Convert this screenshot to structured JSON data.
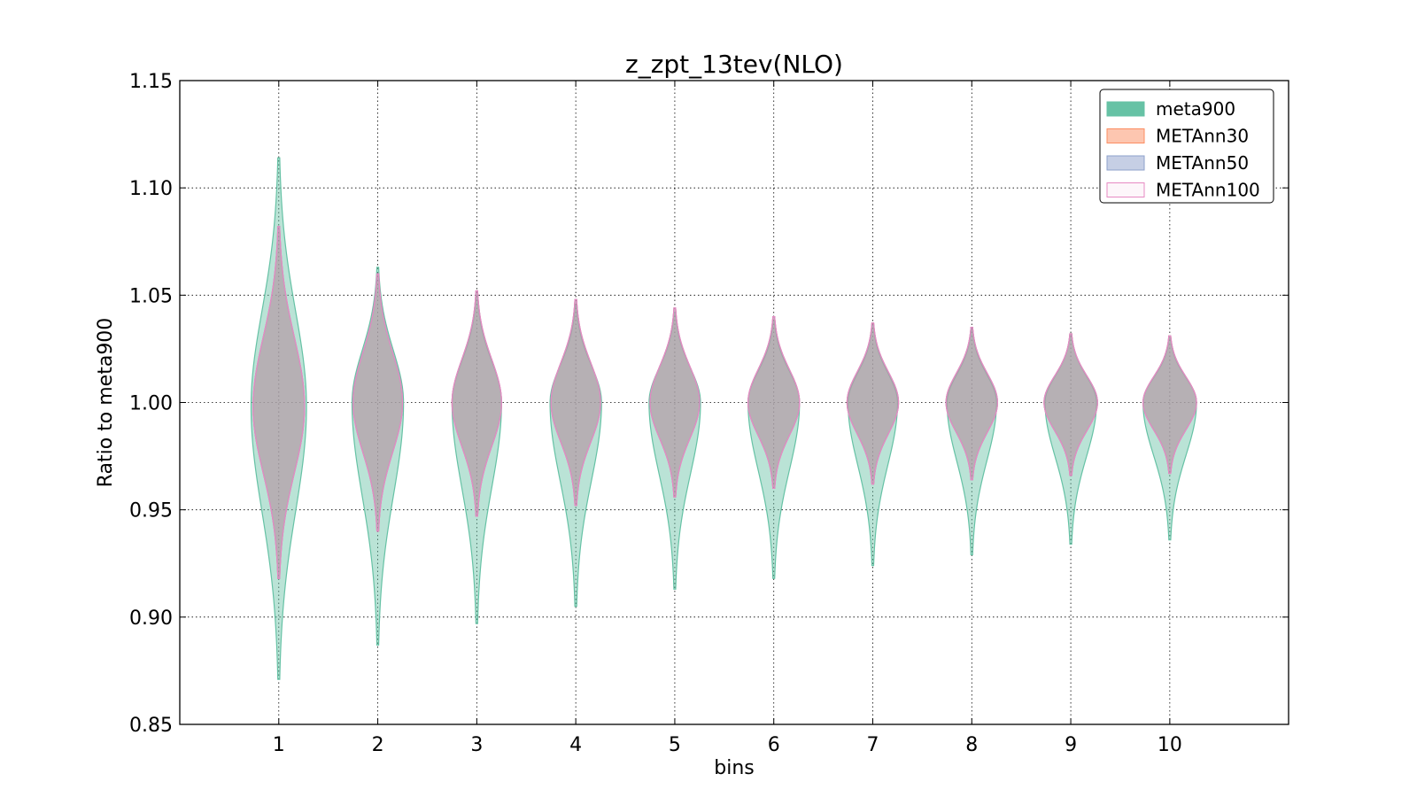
{
  "chart_data": {
    "type": "violin",
    "title": "z_zpt_13tev(NLO)",
    "xlabel": "bins",
    "ylabel": "Ratio to meta900",
    "ylim": [
      0.85,
      1.15
    ],
    "xlim": [
      0,
      11.2
    ],
    "yticks": [
      "0.85",
      "0.90",
      "0.95",
      "1.00",
      "1.05",
      "1.10",
      "1.15"
    ],
    "categories": [
      "1",
      "2",
      "3",
      "4",
      "5",
      "6",
      "7",
      "8",
      "9",
      "10"
    ],
    "grid": true,
    "legend_position": "top-right",
    "series": [
      {
        "name": "meta900",
        "fill": "#66c2a5",
        "edge": "#66c2a5",
        "filled": true,
        "min": [
          0.871,
          0.887,
          0.897,
          0.905,
          0.913,
          0.918,
          0.924,
          0.929,
          0.934,
          0.936
        ],
        "max": [
          1.114,
          1.063,
          1.05,
          1.045,
          1.042,
          1.038,
          1.036,
          1.034,
          1.032,
          1.03
        ],
        "center": [
          0.998,
          1.0,
          1.0,
          1.0,
          1.0,
          1.0,
          1.0,
          1.0,
          1.0,
          1.0
        ],
        "width": [
          0.28,
          0.26,
          0.25,
          0.26,
          0.26,
          0.26,
          0.25,
          0.25,
          0.26,
          0.27
        ]
      },
      {
        "name": "METAnn30",
        "fill": "#fc8d62",
        "edge": "#fc8d62",
        "filled": true,
        "min": [
          0.918,
          0.94,
          0.947,
          0.952,
          0.956,
          0.96,
          0.962,
          0.964,
          0.966,
          0.967
        ],
        "max": [
          1.082,
          1.06,
          1.052,
          1.048,
          1.044,
          1.04,
          1.037,
          1.035,
          1.032,
          1.031
        ],
        "center": [
          0.998,
          1.0,
          1.0,
          1.0,
          1.0,
          1.0,
          1.0,
          1.0,
          1.0,
          1.0
        ],
        "width": [
          0.26,
          0.25,
          0.25,
          0.25,
          0.25,
          0.26,
          0.26,
          0.26,
          0.27,
          0.27
        ]
      },
      {
        "name": "METAnn50",
        "fill": "#8da0cb",
        "edge": "#8da0cb",
        "filled": true,
        "min": [
          0.918,
          0.94,
          0.947,
          0.952,
          0.956,
          0.96,
          0.962,
          0.964,
          0.966,
          0.967
        ],
        "max": [
          1.082,
          1.06,
          1.052,
          1.048,
          1.044,
          1.04,
          1.037,
          1.035,
          1.032,
          1.031
        ],
        "center": [
          0.998,
          1.0,
          1.0,
          1.0,
          1.0,
          1.0,
          1.0,
          1.0,
          1.0,
          1.0
        ],
        "width": [
          0.26,
          0.25,
          0.25,
          0.25,
          0.25,
          0.26,
          0.26,
          0.26,
          0.27,
          0.27
        ]
      },
      {
        "name": "METAnn100",
        "fill": "#e78ac3",
        "edge": "#e78ac3",
        "filled": false,
        "min": [
          0.918,
          0.94,
          0.947,
          0.952,
          0.956,
          0.96,
          0.962,
          0.964,
          0.966,
          0.967
        ],
        "max": [
          1.082,
          1.06,
          1.052,
          1.048,
          1.044,
          1.04,
          1.037,
          1.035,
          1.032,
          1.031
        ],
        "center": [
          0.998,
          1.0,
          1.0,
          1.0,
          1.0,
          1.0,
          1.0,
          1.0,
          1.0,
          1.0
        ],
        "width": [
          0.26,
          0.25,
          0.25,
          0.25,
          0.25,
          0.26,
          0.26,
          0.26,
          0.27,
          0.27
        ]
      }
    ]
  }
}
